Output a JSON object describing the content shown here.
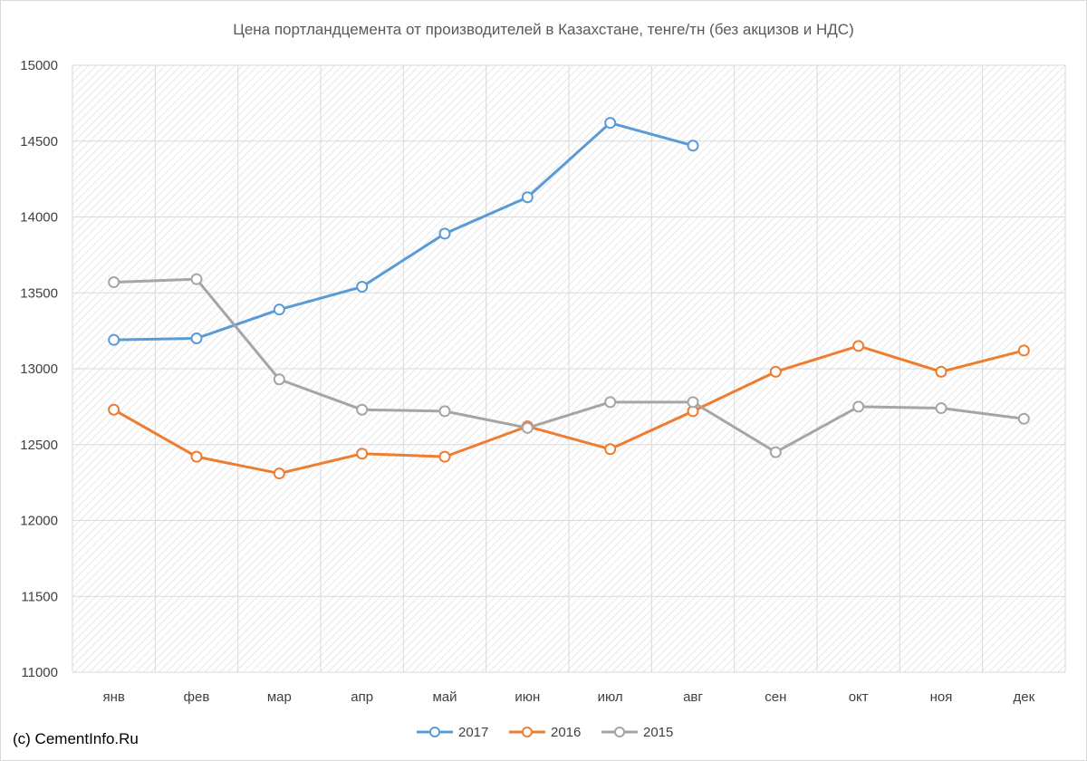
{
  "chart_data": {
    "type": "line",
    "title": "Цена портландцемента от производителей  в Казахстане, тенге/тн (без акцизов и НДС)",
    "categories": [
      "янв",
      "фев",
      "мар",
      "апр",
      "май",
      "июн",
      "июл",
      "авг",
      "сен",
      "окт",
      "ноя",
      "дек"
    ],
    "ylim": [
      11000,
      15000
    ],
    "yticks": [
      11000,
      11500,
      12000,
      12500,
      13000,
      13500,
      14000,
      14500,
      15000
    ],
    "grid": true,
    "legend_position": "bottom",
    "series": [
      {
        "name": "2017",
        "color": "#5B9BD5",
        "values": [
          13190,
          13200,
          13390,
          13540,
          13890,
          14130,
          14620,
          14470,
          null,
          null,
          null,
          null
        ]
      },
      {
        "name": "2016",
        "color": "#ED7D31",
        "values": [
          12730,
          12420,
          12310,
          12440,
          12420,
          12620,
          12470,
          12720,
          12980,
          13150,
          12980,
          13120
        ]
      },
      {
        "name": "2015",
        "color": "#A5A5A5",
        "values": [
          13570,
          13590,
          12930,
          12730,
          12720,
          12610,
          12780,
          12780,
          12450,
          12750,
          12740,
          12670
        ]
      }
    ]
  },
  "credit": "(c) CementInfo.Ru"
}
